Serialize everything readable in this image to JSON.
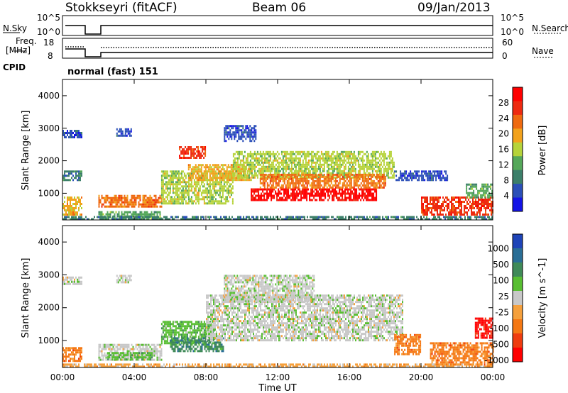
{
  "header": {
    "station": "Stokkseyri (fitACF)",
    "beam": "Beam 06",
    "date": "09/Jan/2013"
  },
  "noise_panel": {
    "left_label": "N.Sky",
    "right_label": "N.Search",
    "left_ticks": [
      "10^5",
      "10^0"
    ],
    "right_ticks": [
      "10^5",
      "10^0"
    ]
  },
  "freq_panel": {
    "left_label_1": "Freq.",
    "left_label_2": "[MHz]",
    "right_label": "Nave",
    "left_ticks": [
      "18",
      "8"
    ],
    "right_ticks": [
      "60",
      "0"
    ]
  },
  "cpid": {
    "label": "CPID",
    "value": "normal (fast) 151"
  },
  "colors": {
    "power_scale": [
      "#1414e6",
      "#2b4fb8",
      "#3c7f6a",
      "#55a85a",
      "#b6d33a",
      "#f2a21c",
      "#ef6a10",
      "#ee2a10",
      "#ff0000"
    ],
    "velocity_scale": [
      "#1e44b8",
      "#2a6e96",
      "#3f8a58",
      "#58be32",
      "#c8c8c8",
      "#f5a03c",
      "#f57814",
      "#ef3c0f",
      "#ff0000"
    ],
    "gray_band": "#c8c8c8"
  },
  "chart_data": [
    {
      "type": "heatmap",
      "name_panel": "power",
      "xlabel": "",
      "ylabel": "Slant Range [km]",
      "xlim": [
        0,
        24
      ],
      "ylim": [
        180,
        4500
      ],
      "y_ticks": [
        "1000",
        "2000",
        "3000",
        "4000"
      ],
      "colorbar": {
        "label": "Power [dB]",
        "ticks": [
          "4",
          "8",
          "12",
          "16",
          "20",
          "24",
          "28"
        ],
        "range": [
          0,
          32
        ]
      },
      "regions": [
        {
          "t0": 0.0,
          "t1": 1.1,
          "r0": 2750,
          "r1": 2950,
          "level": 1
        },
        {
          "t0": 0.0,
          "t1": 1.1,
          "r0": 350,
          "r1": 900,
          "level": 5
        },
        {
          "t0": 0.0,
          "t1": 1.1,
          "r0": 1400,
          "r1": 1700,
          "level": 2
        },
        {
          "t0": 2.0,
          "t1": 5.5,
          "r0": 600,
          "r1": 950,
          "level": 6
        },
        {
          "t0": 2.0,
          "t1": 5.5,
          "r0": 250,
          "r1": 450,
          "level": 3
        },
        {
          "t0": 3.0,
          "t1": 3.8,
          "r0": 2800,
          "r1": 3000,
          "level": 1
        },
        {
          "t0": 5.5,
          "t1": 9.5,
          "r0": 700,
          "r1": 1700,
          "level": 4
        },
        {
          "t0": 6.5,
          "t1": 8.0,
          "r0": 2100,
          "r1": 2450,
          "level": 7
        },
        {
          "t0": 7.0,
          "t1": 10.5,
          "r0": 1400,
          "r1": 1900,
          "level": 5
        },
        {
          "t0": 9.0,
          "t1": 10.8,
          "r0": 2600,
          "r1": 3100,
          "level": 1
        },
        {
          "t0": 9.5,
          "t1": 18.5,
          "r0": 1500,
          "r1": 2300,
          "level": 4
        },
        {
          "t0": 10.5,
          "t1": 17.5,
          "r0": 800,
          "r1": 1150,
          "level": 8
        },
        {
          "t0": 11.0,
          "t1": 18.0,
          "r0": 1150,
          "r1": 1600,
          "level": 6
        },
        {
          "t0": 18.5,
          "t1": 21.5,
          "r0": 1400,
          "r1": 1700,
          "level": 1
        },
        {
          "t0": 20.0,
          "t1": 24.0,
          "r0": 350,
          "r1": 900,
          "level": 7
        },
        {
          "t0": 22.5,
          "t1": 24.0,
          "r0": 900,
          "r1": 1300,
          "level": 3
        },
        {
          "t0": 0.0,
          "t1": 24.0,
          "r0": 180,
          "r1": 300,
          "level": 2
        }
      ]
    },
    {
      "type": "heatmap",
      "name_panel": "velocity",
      "xlabel": "Time UT",
      "ylabel": "Slant Range [km]",
      "xlim": [
        0,
        24
      ],
      "ylim": [
        180,
        4500
      ],
      "y_ticks": [
        "1000",
        "2000",
        "3000",
        "4000"
      ],
      "x_ticks": [
        "00:00",
        "04:00",
        "08:00",
        "12:00",
        "16:00",
        "20:00",
        "00:00"
      ],
      "colorbar": {
        "label": "Velocity [m s^-1]",
        "ticks": [
          "1000",
          "500",
          "100",
          "25",
          "-25",
          "-100",
          "-500",
          "-1000"
        ]
      },
      "regions": [
        {
          "t0": 0.0,
          "t1": 1.1,
          "r0": 2750,
          "r1": 2950,
          "level": 4
        },
        {
          "t0": 0.0,
          "t1": 1.1,
          "r0": 350,
          "r1": 800,
          "level": 6
        },
        {
          "t0": 2.0,
          "t1": 5.5,
          "r0": 400,
          "r1": 900,
          "level": 4
        },
        {
          "t0": 2.5,
          "t1": 5.0,
          "r0": 450,
          "r1": 650,
          "level": 3
        },
        {
          "t0": 3.0,
          "t1": 3.8,
          "r0": 2800,
          "r1": 3000,
          "level": 4
        },
        {
          "t0": 5.5,
          "t1": 8.5,
          "r0": 900,
          "r1": 1600,
          "level": 3
        },
        {
          "t0": 6.0,
          "t1": 9.0,
          "r0": 700,
          "r1": 1100,
          "level": 2
        },
        {
          "t0": 8.0,
          "t1": 19.0,
          "r0": 1000,
          "r1": 2400,
          "level": 4
        },
        {
          "t0": 9.0,
          "t1": 14.0,
          "r0": 2200,
          "r1": 3000,
          "level": 4
        },
        {
          "t0": 18.5,
          "t1": 20.0,
          "r0": 600,
          "r1": 1200,
          "level": 6
        },
        {
          "t0": 20.5,
          "t1": 24.0,
          "r0": 300,
          "r1": 950,
          "level": 6
        },
        {
          "t0": 23.0,
          "t1": 24.0,
          "r0": 1100,
          "r1": 1700,
          "level": 8
        },
        {
          "t0": 0.0,
          "t1": 24.0,
          "r0": 180,
          "r1": 300,
          "level": 5
        }
      ]
    }
  ]
}
